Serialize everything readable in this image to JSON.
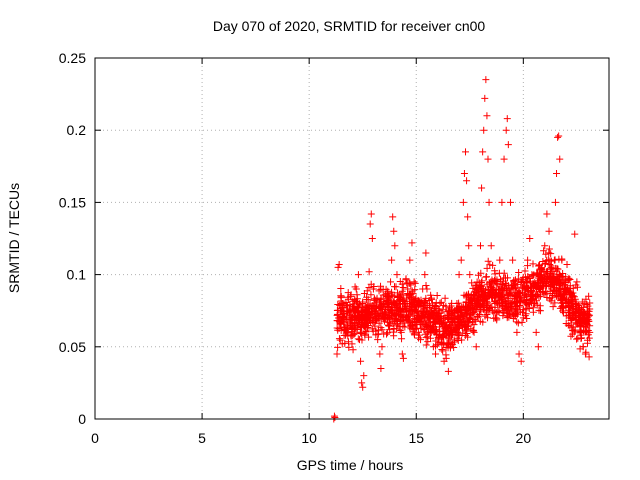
{
  "chart_data": {
    "type": "scatter",
    "title": "Day 070 of 2020, SRMTID for receiver cn00",
    "xlabel": "GPS time / hours",
    "ylabel": "SRMTID / TECUs",
    "xlim": [
      0,
      24
    ],
    "ylim": [
      0,
      0.25
    ],
    "xticks": [
      0,
      5,
      10,
      15,
      20
    ],
    "xtick_labels": [
      "0",
      "5",
      "10",
      "15",
      "20"
    ],
    "yticks": [
      0,
      0.05,
      0.1,
      0.15,
      0.2,
      0.25
    ],
    "ytick_labels": [
      "0",
      "0.05",
      "0.1",
      "0.15",
      "0.2",
      "0.25"
    ],
    "grid": true,
    "marker": "+",
    "color": "#ff0000",
    "series": [
      {
        "name": "SRMTID",
        "points": [
          [
            11.15,
            0.0
          ],
          [
            11.18,
            0.002
          ],
          [
            11.2,
            0.001
          ],
          [
            11.3,
            0.045
          ],
          [
            11.35,
            0.105
          ],
          [
            11.4,
            0.107
          ],
          [
            11.5,
            0.085
          ],
          [
            11.6,
            0.07
          ],
          [
            11.65,
            0.062
          ],
          [
            11.7,
            0.058
          ],
          [
            11.8,
            0.075
          ],
          [
            11.9,
            0.068
          ],
          [
            12.0,
            0.052
          ],
          [
            12.05,
            0.048
          ],
          [
            12.1,
            0.065
          ],
          [
            12.2,
            0.09
          ],
          [
            12.3,
            0.1
          ],
          [
            12.35,
            0.055
          ],
          [
            12.4,
            0.04
          ],
          [
            12.45,
            0.025
          ],
          [
            12.5,
            0.022
          ],
          [
            12.55,
            0.03
          ],
          [
            12.6,
            0.058
          ],
          [
            12.7,
            0.07
          ],
          [
            12.8,
            0.102
          ],
          [
            12.85,
            0.135
          ],
          [
            12.9,
            0.142
          ],
          [
            12.95,
            0.125
          ],
          [
            13.0,
            0.09
          ],
          [
            13.1,
            0.075
          ],
          [
            13.2,
            0.055
          ],
          [
            13.3,
            0.045
          ],
          [
            13.35,
            0.035
          ],
          [
            13.4,
            0.05
          ],
          [
            13.5,
            0.08
          ],
          [
            13.6,
            0.085
          ],
          [
            13.7,
            0.065
          ],
          [
            13.8,
            0.095
          ],
          [
            13.85,
            0.11
          ],
          [
            13.9,
            0.14
          ],
          [
            13.95,
            0.13
          ],
          [
            14.0,
            0.12
          ],
          [
            14.1,
            0.1
          ],
          [
            14.2,
            0.08
          ],
          [
            14.3,
            0.06
          ],
          [
            14.35,
            0.045
          ],
          [
            14.4,
            0.042
          ],
          [
            14.5,
            0.07
          ],
          [
            14.6,
            0.09
          ],
          [
            14.7,
            0.11
          ],
          [
            14.8,
            0.122
          ],
          [
            14.9,
            0.095
          ],
          [
            15.0,
            0.075
          ],
          [
            15.1,
            0.06
          ],
          [
            15.2,
            0.055
          ],
          [
            15.3,
            0.09
          ],
          [
            15.4,
            0.1
          ],
          [
            15.45,
            0.115
          ],
          [
            15.5,
            0.09
          ],
          [
            15.6,
            0.07
          ],
          [
            15.7,
            0.06
          ],
          [
            15.8,
            0.05
          ],
          [
            15.9,
            0.045
          ],
          [
            16.0,
            0.068
          ],
          [
            16.1,
            0.058
          ],
          [
            16.2,
            0.052
          ],
          [
            16.3,
            0.04
          ],
          [
            16.4,
            0.042
          ],
          [
            16.5,
            0.033
          ],
          [
            16.6,
            0.05
          ],
          [
            16.7,
            0.06
          ],
          [
            16.8,
            0.075
          ],
          [
            16.9,
            0.08
          ],
          [
            17.0,
            0.1
          ],
          [
            17.1,
            0.11
          ],
          [
            17.2,
            0.15
          ],
          [
            17.25,
            0.17
          ],
          [
            17.3,
            0.185
          ],
          [
            17.35,
            0.165
          ],
          [
            17.4,
            0.14
          ],
          [
            17.45,
            0.12
          ],
          [
            17.5,
            0.1
          ],
          [
            17.6,
            0.08
          ],
          [
            17.7,
            0.06
          ],
          [
            17.8,
            0.05
          ],
          [
            17.9,
            0.08
          ],
          [
            18.0,
            0.12
          ],
          [
            18.05,
            0.16
          ],
          [
            18.1,
            0.185
          ],
          [
            18.15,
            0.2
          ],
          [
            18.2,
            0.222
          ],
          [
            18.25,
            0.235
          ],
          [
            18.3,
            0.21
          ],
          [
            18.35,
            0.18
          ],
          [
            18.4,
            0.15
          ],
          [
            18.5,
            0.12
          ],
          [
            18.6,
            0.09
          ],
          [
            18.7,
            0.07
          ],
          [
            18.8,
            0.08
          ],
          [
            18.9,
            0.11
          ],
          [
            19.0,
            0.15
          ],
          [
            19.1,
            0.18
          ],
          [
            19.2,
            0.2
          ],
          [
            19.25,
            0.208
          ],
          [
            19.3,
            0.19
          ],
          [
            19.4,
            0.15
          ],
          [
            19.5,
            0.11
          ],
          [
            19.6,
            0.08
          ],
          [
            19.7,
            0.06
          ],
          [
            19.8,
            0.045
          ],
          [
            19.9,
            0.04
          ],
          [
            20.0,
            0.07
          ],
          [
            20.1,
            0.09
          ],
          [
            20.2,
            0.11
          ],
          [
            20.3,
            0.125
          ],
          [
            20.4,
            0.1
          ],
          [
            20.5,
            0.08
          ],
          [
            20.6,
            0.06
          ],
          [
            20.7,
            0.05
          ],
          [
            20.8,
            0.075
          ],
          [
            20.9,
            0.095
          ],
          [
            21.0,
            0.12
          ],
          [
            21.1,
            0.142
          ],
          [
            21.2,
            0.13
          ],
          [
            21.3,
            0.105
          ],
          [
            21.4,
            0.09
          ],
          [
            21.45,
            0.11
          ],
          [
            21.5,
            0.15
          ],
          [
            21.55,
            0.17
          ],
          [
            21.6,
            0.195
          ],
          [
            21.65,
            0.196
          ],
          [
            21.7,
            0.18
          ],
          [
            21.8,
            0.11
          ],
          [
            21.9,
            0.09
          ],
          [
            22.0,
            0.08
          ],
          [
            22.1,
            0.065
          ],
          [
            22.2,
            0.07
          ],
          [
            22.3,
            0.085
          ],
          [
            22.4,
            0.128
          ],
          [
            22.5,
            0.095
          ],
          [
            22.6,
            0.07
          ],
          [
            22.7,
            0.06
          ],
          [
            22.8,
            0.05
          ],
          [
            22.9,
            0.045
          ],
          [
            23.0,
            0.07
          ],
          [
            23.05,
            0.085
          ],
          [
            23.1,
            0.06
          ]
        ],
        "noise": {
          "x_range": [
            11.3,
            23.1
          ],
          "baseline": [
            [
              11.3,
              0.07
            ],
            [
              12.5,
              0.072
            ],
            [
              13.5,
              0.075
            ],
            [
              14.5,
              0.078
            ],
            [
              15.5,
              0.072
            ],
            [
              16.5,
              0.062
            ],
            [
              17.5,
              0.075
            ],
            [
              18.5,
              0.09
            ],
            [
              19.5,
              0.082
            ],
            [
              20.5,
              0.09
            ],
            [
              21.0,
              0.1
            ],
            [
              21.5,
              0.095
            ],
            [
              22.0,
              0.085
            ],
            [
              22.5,
              0.07
            ],
            [
              23.1,
              0.065
            ]
          ],
          "count": 1800
        }
      }
    ]
  }
}
